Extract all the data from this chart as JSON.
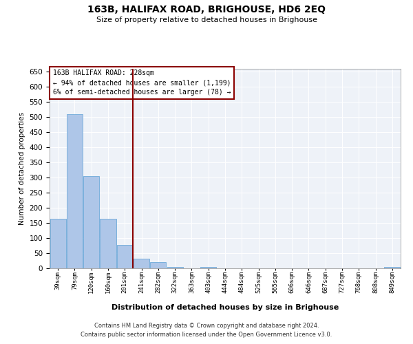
{
  "title": "163B, HALIFAX ROAD, BRIGHOUSE, HD6 2EQ",
  "subtitle": "Size of property relative to detached houses in Brighouse",
  "xlabel": "Distribution of detached houses by size in Brighouse",
  "ylabel": "Number of detached properties",
  "bar_labels": [
    "39sqm",
    "79sqm",
    "120sqm",
    "160sqm",
    "201sqm",
    "241sqm",
    "282sqm",
    "322sqm",
    "363sqm",
    "403sqm",
    "444sqm",
    "484sqm",
    "525sqm",
    "565sqm",
    "606sqm",
    "646sqm",
    "687sqm",
    "727sqm",
    "768sqm",
    "808sqm",
    "849sqm"
  ],
  "bar_values": [
    165,
    510,
    305,
    165,
    78,
    33,
    20,
    5,
    0,
    5,
    0,
    0,
    0,
    0,
    0,
    0,
    0,
    0,
    0,
    0,
    5
  ],
  "bar_color": "#aec6e8",
  "bar_edge_color": "#5a9fd4",
  "vline_x_index": 5,
  "vline_color": "#8b0000",
  "annotation_title": "163B HALIFAX ROAD: 228sqm",
  "annotation_line1": "← 94% of detached houses are smaller (1,199)",
  "annotation_line2": "6% of semi-detached houses are larger (78) →",
  "annotation_box_color": "#8b0000",
  "ylim": [
    0,
    660
  ],
  "yticks": [
    0,
    50,
    100,
    150,
    200,
    250,
    300,
    350,
    400,
    450,
    500,
    550,
    600,
    650
  ],
  "background_color": "#eef2f8",
  "grid_color": "#ffffff",
  "footer_line1": "Contains HM Land Registry data © Crown copyright and database right 2024.",
  "footer_line2": "Contains public sector information licensed under the Open Government Licence v3.0."
}
